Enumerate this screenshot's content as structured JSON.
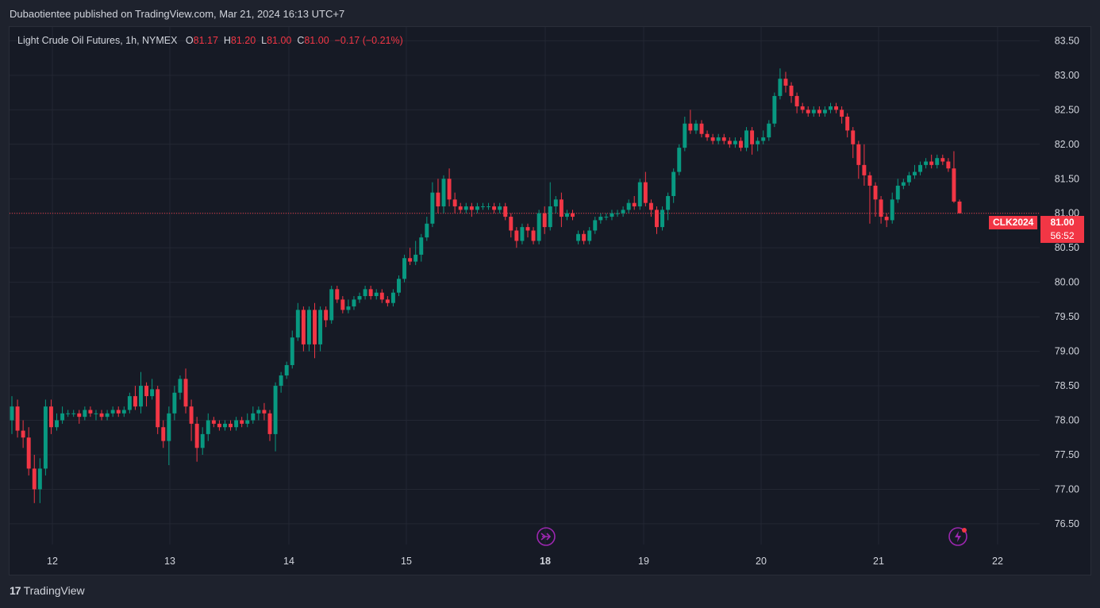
{
  "header": {
    "publish_line": "Dubaotientee published on TradingView.com, Mar 21, 2024 16:13 UTC+7"
  },
  "legend": {
    "symbol": "Light Crude Oil Futures, 1h, NYMEX",
    "open_label": "O",
    "open": "81.17",
    "high_label": "H",
    "high": "81.20",
    "low_label": "L",
    "low": "81.00",
    "close_label": "C",
    "close": "81.00",
    "change": "−0.17 (−0.21%)"
  },
  "price_labels": {
    "ticker": "CLK2024",
    "last": "81.00",
    "countdown": "56:52"
  },
  "footer": {
    "brand": "TradingView",
    "logo_text": "17"
  },
  "icons": {
    "jump": "jump-to-realtime-icon",
    "flash": "flash-icon"
  },
  "colors": {
    "up": "#089981",
    "down": "#f23645",
    "bg": "#161a25",
    "grid": "#232733",
    "text": "#d1d4dc",
    "marker": "#9c27b0"
  },
  "chart_data": {
    "type": "candlestick",
    "ylim": [
      76.2,
      83.7
    ],
    "y_ticks": [
      "83.50",
      "83.00",
      "82.50",
      "82.00",
      "81.50",
      "81.00",
      "80.50",
      "80.00",
      "79.50",
      "79.00",
      "78.50",
      "78.00",
      "77.50",
      "77.00",
      "76.50"
    ],
    "x_ticks": [
      "12",
      "13",
      "14",
      "15",
      "18",
      "19",
      "20",
      "21",
      "22"
    ],
    "x_ticks_bold": [
      "18"
    ],
    "last_price": 81.0,
    "candles": [
      [
        78.0,
        78.2,
        78.35,
        77.8
      ],
      [
        78.2,
        77.85,
        78.3,
        77.75
      ],
      [
        77.85,
        77.75,
        78.0,
        77.6
      ],
      [
        77.75,
        77.3,
        77.9,
        77.2
      ],
      [
        77.3,
        77.0,
        77.5,
        76.8
      ],
      [
        77.0,
        77.3,
        77.45,
        76.8
      ],
      [
        77.3,
        78.2,
        78.3,
        77.2
      ],
      [
        78.2,
        77.9,
        78.3,
        77.8
      ],
      [
        77.9,
        78.0,
        78.1,
        77.85
      ],
      [
        78.0,
        78.1,
        78.2,
        77.95
      ],
      [
        78.1,
        78.1,
        78.15,
        78.05
      ],
      [
        78.1,
        78.1,
        78.15,
        78.05
      ],
      [
        78.1,
        78.05,
        78.15,
        77.95
      ],
      [
        78.05,
        78.15,
        78.2,
        78.0
      ],
      [
        78.15,
        78.1,
        78.2,
        78.05
      ],
      [
        78.1,
        78.1,
        78.15,
        78.0
      ],
      [
        78.1,
        78.05,
        78.15,
        78.0
      ],
      [
        78.05,
        78.1,
        78.15,
        78.0
      ],
      [
        78.1,
        78.15,
        78.2,
        78.05
      ],
      [
        78.15,
        78.1,
        78.2,
        78.05
      ],
      [
        78.1,
        78.15,
        78.2,
        78.05
      ],
      [
        78.15,
        78.35,
        78.4,
        78.1
      ],
      [
        78.35,
        78.2,
        78.5,
        78.15
      ],
      [
        78.2,
        78.5,
        78.7,
        78.1
      ],
      [
        78.5,
        78.35,
        78.55,
        78.2
      ],
      [
        78.35,
        78.45,
        78.6,
        78.3
      ],
      [
        78.45,
        77.9,
        78.5,
        77.8
      ],
      [
        77.9,
        77.7,
        78.0,
        77.6
      ],
      [
        77.7,
        78.1,
        78.2,
        77.35
      ],
      [
        78.1,
        78.4,
        78.5,
        78.0
      ],
      [
        78.4,
        78.6,
        78.65,
        78.3
      ],
      [
        78.6,
        78.2,
        78.75,
        78.1
      ],
      [
        78.2,
        77.95,
        78.3,
        77.7
      ],
      [
        77.95,
        77.6,
        78.05,
        77.4
      ],
      [
        77.6,
        77.8,
        77.9,
        77.5
      ],
      [
        77.8,
        78.0,
        78.1,
        77.7
      ],
      [
        78.0,
        77.95,
        78.05,
        77.9
      ],
      [
        77.95,
        77.9,
        78.0,
        77.85
      ],
      [
        77.9,
        77.95,
        78.0,
        77.85
      ],
      [
        77.95,
        77.9,
        78.0,
        77.85
      ],
      [
        77.9,
        78.0,
        78.05,
        77.85
      ],
      [
        78.0,
        77.95,
        78.05,
        77.9
      ],
      [
        77.95,
        78.0,
        78.1,
        77.9
      ],
      [
        78.0,
        78.1,
        78.2,
        77.95
      ],
      [
        78.1,
        78.15,
        78.2,
        78.0
      ],
      [
        78.15,
        78.1,
        78.25,
        78.0
      ],
      [
        78.1,
        77.8,
        78.15,
        77.7
      ],
      [
        77.8,
        78.5,
        78.55,
        77.55
      ],
      [
        78.5,
        78.65,
        78.7,
        78.4
      ],
      [
        78.65,
        78.8,
        78.85,
        78.6
      ],
      [
        78.8,
        79.2,
        79.3,
        78.75
      ],
      [
        79.2,
        79.6,
        79.7,
        79.15
      ],
      [
        79.6,
        79.1,
        79.65,
        79.0
      ],
      [
        79.1,
        79.6,
        79.65,
        79.0
      ],
      [
        79.6,
        79.1,
        79.7,
        78.9
      ],
      [
        79.1,
        79.6,
        79.65,
        79.0
      ],
      [
        79.6,
        79.45,
        79.65,
        79.35
      ],
      [
        79.45,
        79.9,
        79.95,
        79.4
      ],
      [
        79.9,
        79.75,
        79.95,
        79.7
      ],
      [
        79.75,
        79.6,
        79.8,
        79.55
      ],
      [
        79.6,
        79.65,
        79.75,
        79.55
      ],
      [
        79.65,
        79.75,
        79.8,
        79.6
      ],
      [
        79.75,
        79.8,
        79.85,
        79.7
      ],
      [
        79.8,
        79.9,
        79.95,
        79.75
      ],
      [
        79.9,
        79.8,
        79.95,
        79.75
      ],
      [
        79.8,
        79.85,
        79.9,
        79.75
      ],
      [
        79.85,
        79.75,
        79.9,
        79.7
      ],
      [
        79.75,
        79.7,
        79.8,
        79.65
      ],
      [
        79.7,
        79.85,
        79.9,
        79.65
      ],
      [
        79.85,
        80.05,
        80.1,
        79.8
      ],
      [
        80.05,
        80.35,
        80.4,
        80.0
      ],
      [
        80.35,
        80.3,
        80.5,
        80.25
      ],
      [
        80.3,
        80.4,
        80.6,
        80.25
      ],
      [
        80.4,
        80.65,
        80.7,
        80.3
      ],
      [
        80.65,
        80.85,
        80.95,
        80.6
      ],
      [
        80.85,
        81.3,
        81.45,
        80.8
      ],
      [
        81.3,
        81.1,
        81.5,
        81.0
      ],
      [
        81.1,
        81.5,
        81.55,
        81.0
      ],
      [
        81.5,
        81.2,
        81.65,
        81.1
      ],
      [
        81.2,
        81.1,
        81.3,
        81.0
      ],
      [
        81.1,
        81.05,
        81.15,
        81.0
      ],
      [
        81.05,
        81.1,
        81.15,
        81.0
      ],
      [
        81.1,
        81.05,
        81.15,
        80.95
      ],
      [
        81.05,
        81.1,
        81.15,
        81.0
      ],
      [
        81.1,
        81.1,
        81.15,
        81.05
      ],
      [
        81.1,
        81.1,
        81.15,
        81.05
      ],
      [
        81.1,
        81.05,
        81.15,
        81.0
      ],
      [
        81.05,
        81.1,
        81.15,
        81.0
      ],
      [
        81.1,
        80.95,
        81.15,
        80.9
      ],
      [
        80.95,
        80.75,
        81.0,
        80.65
      ],
      [
        80.75,
        80.6,
        80.8,
        80.5
      ],
      [
        80.6,
        80.8,
        80.85,
        80.55
      ],
      [
        80.8,
        80.75,
        80.85,
        80.65
      ],
      [
        80.75,
        80.6,
        80.8,
        80.55
      ],
      [
        80.6,
        81.0,
        81.05,
        80.55
      ],
      [
        81.0,
        80.8,
        81.1,
        80.7
      ],
      [
        80.8,
        81.1,
        81.45,
        80.75
      ],
      [
        81.1,
        81.2,
        81.25,
        81.0
      ],
      [
        81.2,
        80.95,
        81.3,
        80.8
      ],
      [
        80.95,
        81.0,
        81.05,
        80.9
      ],
      [
        81.0,
        80.95,
        81.05,
        80.9
      ],
      [
        80.6,
        80.7,
        80.75,
        80.55
      ],
      [
        80.7,
        80.6,
        80.75,
        80.55
      ],
      [
        80.6,
        80.75,
        80.8,
        80.55
      ],
      [
        80.75,
        80.9,
        80.95,
        80.7
      ],
      [
        80.9,
        80.95,
        81.0,
        80.85
      ],
      [
        80.95,
        80.95,
        81.0,
        80.9
      ],
      [
        80.95,
        81.0,
        81.05,
        80.9
      ],
      [
        81.0,
        81.0,
        81.05,
        80.95
      ],
      [
        81.0,
        81.05,
        81.1,
        80.95
      ],
      [
        81.05,
        81.15,
        81.2,
        81.0
      ],
      [
        81.15,
        81.1,
        81.25,
        81.05
      ],
      [
        81.1,
        81.45,
        81.5,
        81.05
      ],
      [
        81.45,
        81.15,
        81.6,
        81.1
      ],
      [
        81.15,
        81.05,
        81.2,
        80.95
      ],
      [
        81.05,
        80.8,
        81.1,
        80.7
      ],
      [
        80.8,
        81.05,
        81.1,
        80.75
      ],
      [
        81.05,
        81.25,
        81.3,
        80.9
      ],
      [
        81.25,
        81.6,
        81.65,
        81.15
      ],
      [
        81.6,
        81.95,
        82.0,
        81.55
      ],
      [
        81.95,
        82.3,
        82.4,
        81.9
      ],
      [
        82.3,
        82.2,
        82.5,
        82.15
      ],
      [
        82.2,
        82.3,
        82.35,
        82.15
      ],
      [
        82.3,
        82.15,
        82.35,
        82.1
      ],
      [
        82.15,
        82.1,
        82.2,
        82.05
      ],
      [
        82.1,
        82.05,
        82.15,
        82.0
      ],
      [
        82.05,
        82.1,
        82.15,
        82.0
      ],
      [
        82.1,
        82.05,
        82.15,
        82.0
      ],
      [
        82.05,
        82.0,
        82.1,
        81.95
      ],
      [
        82.0,
        82.05,
        82.1,
        81.95
      ],
      [
        82.05,
        81.95,
        82.1,
        81.9
      ],
      [
        81.95,
        82.2,
        82.25,
        81.9
      ],
      [
        82.2,
        82.0,
        82.25,
        81.85
      ],
      [
        82.0,
        82.05,
        82.1,
        81.9
      ],
      [
        82.05,
        82.1,
        82.2,
        82.0
      ],
      [
        82.1,
        82.3,
        82.35,
        82.05
      ],
      [
        82.3,
        82.7,
        82.75,
        82.25
      ],
      [
        82.7,
        82.95,
        83.1,
        82.65
      ],
      [
        82.95,
        82.85,
        83.05,
        82.75
      ],
      [
        82.85,
        82.7,
        82.9,
        82.6
      ],
      [
        82.7,
        82.55,
        82.75,
        82.45
      ],
      [
        82.55,
        82.5,
        82.6,
        82.45
      ],
      [
        82.5,
        82.45,
        82.55,
        82.4
      ],
      [
        82.45,
        82.5,
        82.55,
        82.4
      ],
      [
        82.5,
        82.45,
        82.55,
        82.4
      ],
      [
        82.45,
        82.5,
        82.55,
        82.4
      ],
      [
        82.5,
        82.55,
        82.6,
        82.45
      ],
      [
        82.55,
        82.5,
        82.6,
        82.45
      ],
      [
        82.5,
        82.4,
        82.55,
        82.3
      ],
      [
        82.4,
        82.2,
        82.45,
        82.1
      ],
      [
        82.2,
        82.0,
        82.25,
        81.8
      ],
      [
        82.0,
        81.7,
        82.05,
        81.5
      ],
      [
        81.7,
        81.55,
        82.0,
        81.4
      ],
      [
        81.55,
        81.4,
        81.6,
        80.85
      ],
      [
        81.4,
        81.2,
        81.45,
        80.95
      ],
      [
        81.2,
        80.95,
        81.25,
        80.85
      ],
      [
        80.95,
        80.9,
        81.0,
        80.8
      ],
      [
        80.9,
        81.2,
        81.3,
        80.85
      ],
      [
        81.2,
        81.4,
        81.5,
        81.15
      ],
      [
        81.4,
        81.45,
        81.5,
        81.35
      ],
      [
        81.45,
        81.55,
        81.6,
        81.4
      ],
      [
        81.55,
        81.6,
        81.7,
        81.5
      ],
      [
        81.6,
        81.7,
        81.75,
        81.55
      ],
      [
        81.7,
        81.75,
        81.8,
        81.65
      ],
      [
        81.75,
        81.7,
        81.85,
        81.65
      ],
      [
        81.7,
        81.8,
        81.85,
        81.65
      ],
      [
        81.8,
        81.75,
        81.85,
        81.7
      ],
      [
        81.75,
        81.65,
        81.8,
        81.6
      ],
      [
        81.65,
        81.17,
        81.9,
        81.15
      ],
      [
        81.17,
        81.0,
        81.2,
        81.0
      ]
    ]
  }
}
